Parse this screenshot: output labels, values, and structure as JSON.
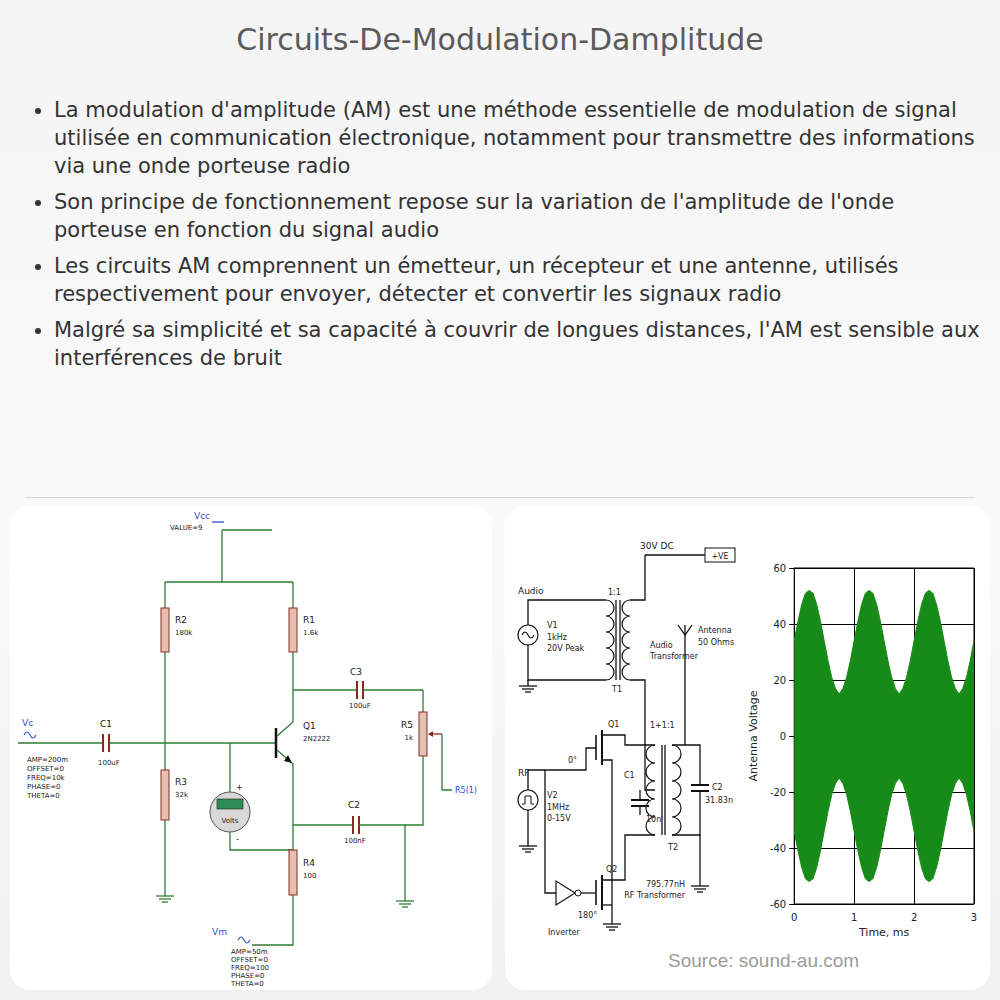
{
  "header": {
    "title": "Circuits-De-Modulation-Damplitude"
  },
  "bullets": [
    "La modulation d'amplitude (AM) est une méthode essentielle de modulation de signal utilisée en communication électronique, notamment pour transmettre des informations via une onde porteuse radio",
    "Son principe de fonctionnement repose sur la variation de l'amplitude de l'onde porteuse en fonction du signal audio",
    "Les circuits AM comprennent un émetteur, un récepteur et une antenne, utilisés respectivement pour envoyer, détecter et convertir les signaux radio",
    "Malgré sa simplicité et sa capacité à couvrir de longues distances, l'AM est sensible aux interférences de bruit"
  ],
  "circuit_left": {
    "vcc": {
      "name": "Vcc",
      "value": "VALUE=9"
    },
    "vc": {
      "name": "Vc",
      "params": [
        "AMP=200m",
        "OFFSET=0",
        "FREQ=10k",
        "PHASE=0",
        "THETA=0"
      ]
    },
    "vm": {
      "name": "Vm",
      "params": [
        "AMP=50m",
        "OFFSET=0",
        "FREQ=100",
        "PHASE=0",
        "THETA=0"
      ]
    },
    "r1": {
      "ref": "R1",
      "value": "1.6k"
    },
    "r2": {
      "ref": "R2",
      "value": "180k"
    },
    "r3": {
      "ref": "R3",
      "value": "32k"
    },
    "r4": {
      "ref": "R4",
      "value": "100"
    },
    "r5": {
      "ref": "R5",
      "value": "1k"
    },
    "c1": {
      "ref": "C1",
      "value": "100uF"
    },
    "c2": {
      "ref": "C2",
      "value": "100nF"
    },
    "c3": {
      "ref": "C3",
      "value": "100uF"
    },
    "q1": {
      "ref": "Q1",
      "value": "2N2222"
    },
    "voltmeter": {
      "label": "Volts",
      "plus": "+",
      "minus": "-"
    },
    "probe": "R5(1)"
  },
  "circuit_right": {
    "supply": "30V DC",
    "supply_tag": "+VE",
    "v1": {
      "title": "Audio",
      "ref": "V1",
      "lines": [
        "1kHz",
        "20V Peak"
      ]
    },
    "t1": {
      "ratio": "1:1",
      "ref": "T1",
      "lines": [
        "Audio",
        "Transformer"
      ]
    },
    "antenna": [
      "Antenna",
      "50 Ohms"
    ],
    "t2": {
      "ratio": "1+1:1",
      "ref": "T2",
      "lines": [
        "795.77nH",
        "RF Transformer"
      ]
    },
    "v2": {
      "title": "RF",
      "ref": "V2",
      "lines": [
        "1MHz",
        "0-15V"
      ]
    },
    "q1": {
      "ref": "Q1",
      "phase": "0°"
    },
    "q2": {
      "ref": "Q2"
    },
    "c1": {
      "ref": "C1",
      "value": "10n"
    },
    "c2": {
      "ref": "C2",
      "value": "31.83n"
    },
    "inverter": {
      "label": "Inverter",
      "phase": "180°"
    }
  },
  "source": "Source: sound-au.com",
  "chart_data": {
    "type": "area",
    "xlabel": "Time, ms",
    "ylabel": "Antenna Voltage",
    "x": [
      0,
      0.0625,
      0.125,
      0.1875,
      0.25,
      0.3125,
      0.375,
      0.4375,
      0.5,
      0.5625,
      0.625,
      0.6875,
      0.75,
      0.8125,
      0.875,
      0.9375,
      1,
      1.0625,
      1.125,
      1.1875,
      1.25,
      1.3125,
      1.375,
      1.4375,
      1.5,
      1.5625,
      1.625,
      1.6875,
      1.75,
      1.8125,
      1.875,
      1.9375,
      2,
      2.0625,
      2.125,
      2.1875,
      2.25,
      2.3125,
      2.375,
      2.4375,
      2.5,
      2.5625,
      2.625,
      2.6875,
      2.75,
      2.8125,
      2.875,
      2.9375,
      3
    ],
    "series": [
      {
        "color": "#178a17",
        "values": [
          34,
          41,
          47,
          51,
          52,
          51,
          47,
          41,
          34,
          27,
          21,
          17,
          15,
          17,
          21,
          27,
          34,
          41,
          47,
          51,
          52,
          51,
          47,
          41,
          34,
          27,
          21,
          17,
          15,
          17,
          21,
          27,
          34,
          41,
          47,
          51,
          52,
          51,
          47,
          41,
          34,
          27,
          21,
          17,
          15,
          17,
          21,
          27,
          34
        ]
      },
      {
        "color": "#178a17",
        "values": [
          -34,
          -41,
          -47,
          -51,
          -52,
          -51,
          -47,
          -41,
          -34,
          -27,
          -21,
          -17,
          -15,
          -17,
          -21,
          -27,
          -34,
          -41,
          -47,
          -51,
          -52,
          -51,
          -47,
          -41,
          -34,
          -27,
          -21,
          -17,
          -15,
          -17,
          -21,
          -27,
          -34,
          -41,
          -47,
          -51,
          -52,
          -51,
          -47,
          -41,
          -34,
          -27,
          -21,
          -17,
          -15,
          -17,
          -21,
          -27,
          -34
        ]
      }
    ],
    "xlim": [
      0,
      3
    ],
    "xticks": [
      0,
      1,
      2,
      3
    ],
    "ylim": [
      -60,
      60
    ],
    "yticks": [
      -60,
      -40,
      -20,
      0,
      20,
      40,
      60
    ],
    "grid": true
  }
}
